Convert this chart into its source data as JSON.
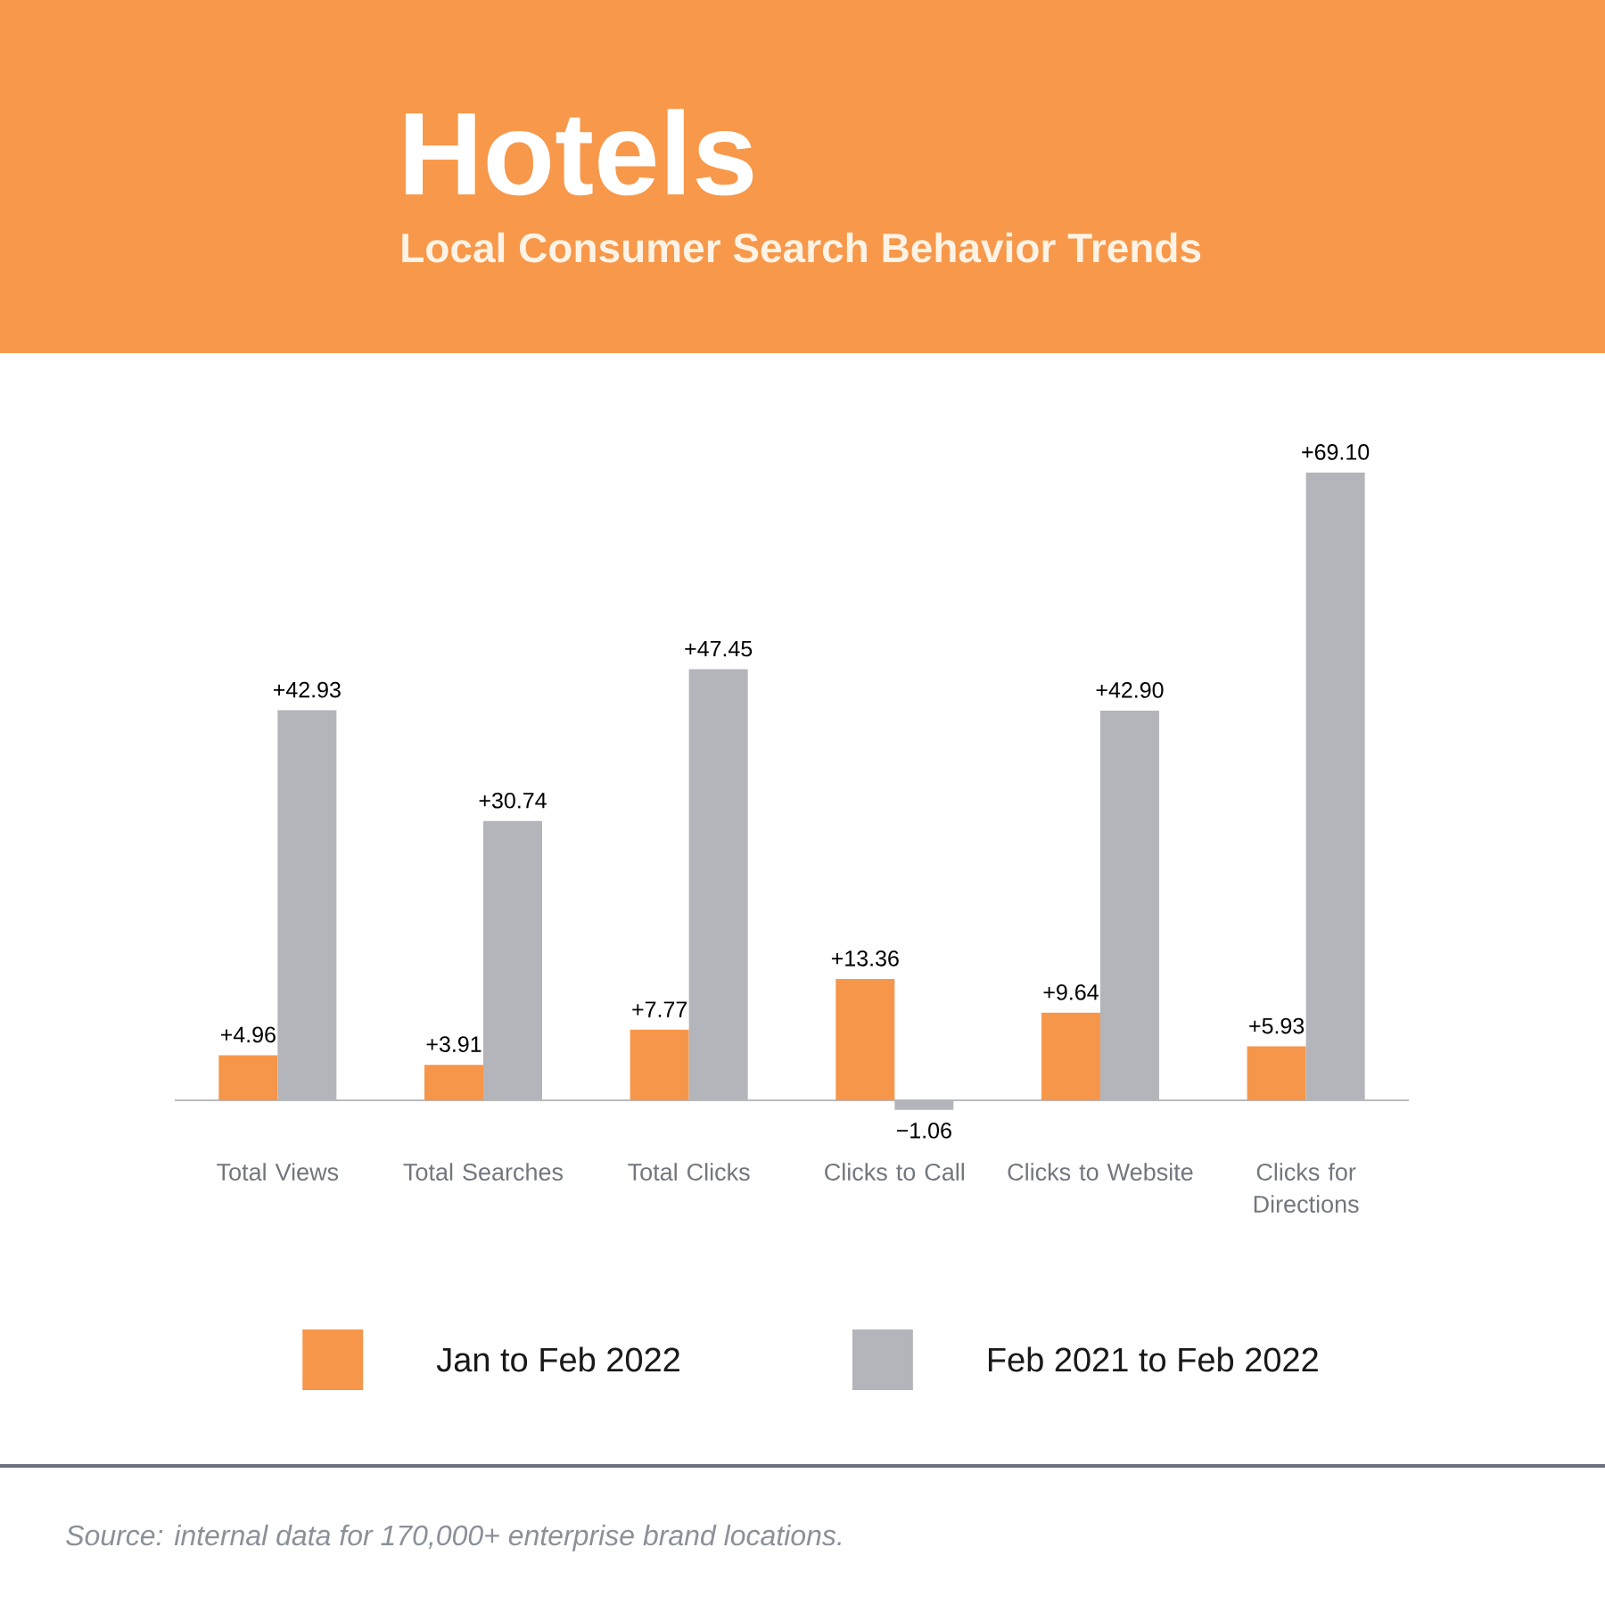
{
  "chart_data": {
    "type": "bar",
    "title": "Hotels",
    "subtitle": "Local Consumer Search Behavior Trends",
    "categories": [
      "Total Views",
      "Total Searches",
      "Total Clicks",
      "Clicks to Call",
      "Clicks to Website",
      "Clicks for Directions"
    ],
    "series": [
      {
        "name": "Jan to Feb 2022",
        "color": "#f5964a",
        "values": [
          4.96,
          3.91,
          7.77,
          13.36,
          9.64,
          5.93
        ],
        "value_labels": [
          "+4.96",
          "+3.91",
          "+7.77",
          "+13.36",
          "+9.64",
          "+5.93"
        ]
      },
      {
        "name": "Feb 2021 to Feb 2022",
        "color": "#b4b5ba",
        "values": [
          42.93,
          30.74,
          47.45,
          -1.06,
          42.9,
          69.1
        ],
        "value_labels": [
          "+42.93",
          "+30.74",
          "+47.45",
          "−1.06",
          "+42.90",
          "+69.10"
        ]
      }
    ],
    "legend": "bottom",
    "annotations": [
      "Source: internal data for 170,000+ enterprise brand locations."
    ]
  }
}
